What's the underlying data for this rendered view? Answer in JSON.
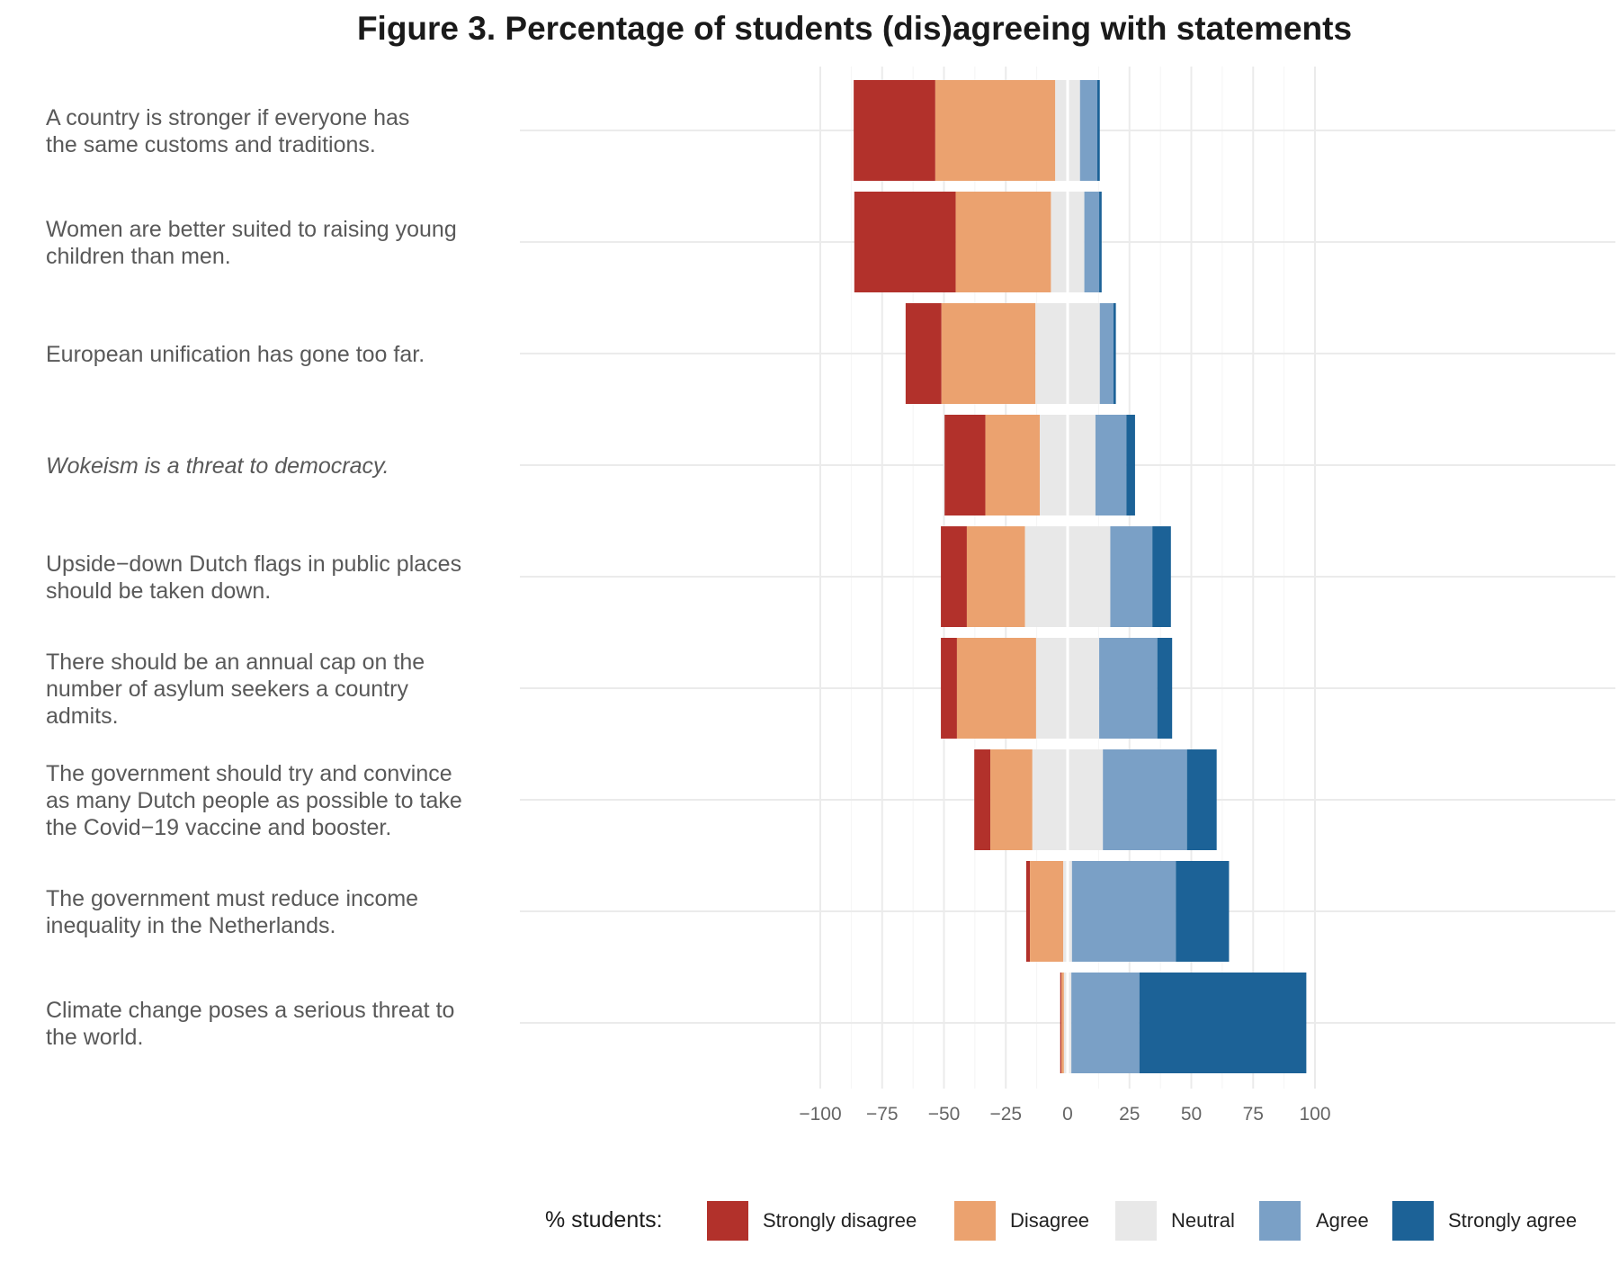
{
  "chart_data": {
    "type": "bar",
    "orientation": "horizontal",
    "stacked": "diverging",
    "title": "Figure 3. Percentage of students (dis)agreeing with statements",
    "xlabel": "",
    "ylabel": "",
    "xlim": [
      -100,
      100
    ],
    "xticks": [
      "−100",
      "−75",
      "−50",
      "−25",
      "0",
      "25",
      "50",
      "75",
      "100"
    ],
    "xtick_values": [
      -100,
      -75,
      -50,
      -25,
      0,
      25,
      50,
      75,
      100
    ],
    "grid": true,
    "legend_title": "% students:",
    "legend_position": "bottom",
    "categories": [
      {
        "lines": [
          "A country is stronger if everyone has",
          "the same customs and traditions."
        ],
        "italic": false
      },
      {
        "lines": [
          "Women are better suited to raising young",
          "children than men."
        ],
        "italic": false
      },
      {
        "lines": [
          "European unification has gone too far."
        ],
        "italic": false
      },
      {
        "lines": [
          "Wokeism is a threat to democracy."
        ],
        "italic": true
      },
      {
        "lines": [
          "Upside−down Dutch flags in public places",
          "should be taken down."
        ],
        "italic": false
      },
      {
        "lines": [
          "There should be an annual cap on the",
          "number of asylum seekers a country",
          "admits."
        ],
        "italic": false
      },
      {
        "lines": [
          "The government should try and convince",
          "as many Dutch people as possible to take",
          "the Covid−19 vaccine and booster."
        ],
        "italic": false
      },
      {
        "lines": [
          "The government must reduce income",
          "inequality in the Netherlands."
        ],
        "italic": false
      },
      {
        "lines": [
          "Climate change poses a serious threat to",
          "the world."
        ],
        "italic": false
      }
    ],
    "series": [
      {
        "name": "Strongly disagree",
        "color": "#b2312b",
        "values": [
          33,
          41,
          14.5,
          16.5,
          10.5,
          6.5,
          6.5,
          1.5,
          0.5
        ]
      },
      {
        "name": "Disagree",
        "color": "#eba26f",
        "values": [
          48.5,
          38.5,
          38,
          22,
          23.5,
          32,
          17,
          13.5,
          1
        ]
      },
      {
        "name": "Neutral",
        "color": "#e8e8e8",
        "values": [
          10,
          13.5,
          26,
          22.5,
          34.5,
          25.5,
          28.5,
          3.5,
          3
        ]
      },
      {
        "name": "Agree",
        "color": "#7aa0c6",
        "values": [
          7,
          6,
          5.5,
          12.5,
          17,
          23.5,
          34,
          42,
          27.5
        ]
      },
      {
        "name": "Strongly agree",
        "color": "#1c6297",
        "values": [
          1,
          1,
          1,
          3.5,
          7.5,
          6,
          12,
          21.5,
          67.5
        ]
      }
    ]
  }
}
